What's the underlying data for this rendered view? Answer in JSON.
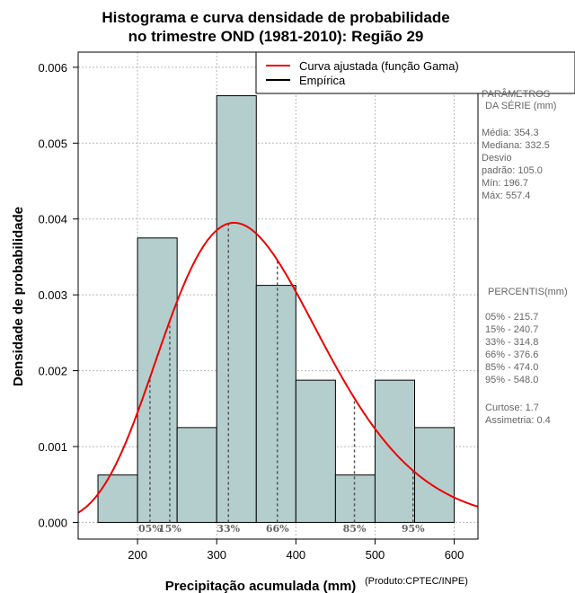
{
  "chart_data": {
    "type": "bar",
    "title_line1": "Histograma e curva densidade de probabilidade",
    "title_line2": "no trimestre OND (1981-2010): Região 29",
    "xlabel": "Precipitação acumulada (mm)",
    "ylabel": "Densidade de probabilidade",
    "credit": "(Produto:CPTEC/INPE)",
    "xlim": [
      125,
      630
    ],
    "ylim": [
      -0.00022,
      0.0062
    ],
    "x_ticks": [
      200,
      300,
      400,
      500,
      600
    ],
    "x_tick_labels": [
      "200",
      "300",
      "400",
      "500",
      "600"
    ],
    "y_ticks": [
      0.0,
      0.001,
      0.002,
      0.003,
      0.004,
      0.005,
      0.006
    ],
    "y_tick_labels": [
      "0.000",
      "0.001",
      "0.002",
      "0.003",
      "0.004",
      "0.005",
      "0.006"
    ],
    "bins": [
      {
        "start": 150,
        "end": 200,
        "density": 0.000625
      },
      {
        "start": 200,
        "end": 250,
        "density": 0.00375
      },
      {
        "start": 250,
        "end": 300,
        "density": 0.00125
      },
      {
        "start": 300,
        "end": 350,
        "density": 0.005625
      },
      {
        "start": 350,
        "end": 400,
        "density": 0.003125
      },
      {
        "start": 400,
        "end": 450,
        "density": 0.001875
      },
      {
        "start": 450,
        "end": 500,
        "density": 0.000625
      },
      {
        "start": 500,
        "end": 550,
        "density": 0.001875
      },
      {
        "start": 550,
        "end": 600,
        "density": 0.00125
      }
    ],
    "gamma_fit": {
      "mean": 354.3,
      "sd": 105.0,
      "peak_x": 322,
      "peak_y": 0.00395
    },
    "percentile_markers": [
      {
        "label": "05%",
        "value": 215.7
      },
      {
        "label": "15%",
        "value": 240.7
      },
      {
        "label": "33%",
        "value": 314.8
      },
      {
        "label": "66%",
        "value": 376.6
      },
      {
        "label": "85%",
        "value": 474.0
      },
      {
        "label": "95%",
        "value": 548.0
      }
    ],
    "legend": {
      "fitted_label": "Curva ajustada (função Gama)",
      "fitted_color": "#ee0000",
      "empirical_label": "Empírica",
      "empirical_color": "#000000"
    },
    "bar_color": "#b4cecd",
    "grid": true
  },
  "side_panel": {
    "params_title_1": "PARÂMETROS",
    "params_title_2": "DA SÉRIE (mm)",
    "media": "Média:  354.3",
    "mediana": "Mediana:  332.5",
    "desvio_1": "Desvio",
    "desvio_2": "padrão:  105.0",
    "min": "Mín:  196.7",
    "max": "Máx:  557.4",
    "percentis_title": "PERCENTIS(mm)",
    "p05": "05% -   215.7",
    "p15": "15% -   240.7",
    "p33": "33% -   314.8",
    "p66": "66% -   376.6",
    "p85": "85% -   474.0",
    "p95": "95% -   548.0",
    "curtose": "Curtose:  1.7",
    "assimetria": "Assimetria:  0.4"
  }
}
